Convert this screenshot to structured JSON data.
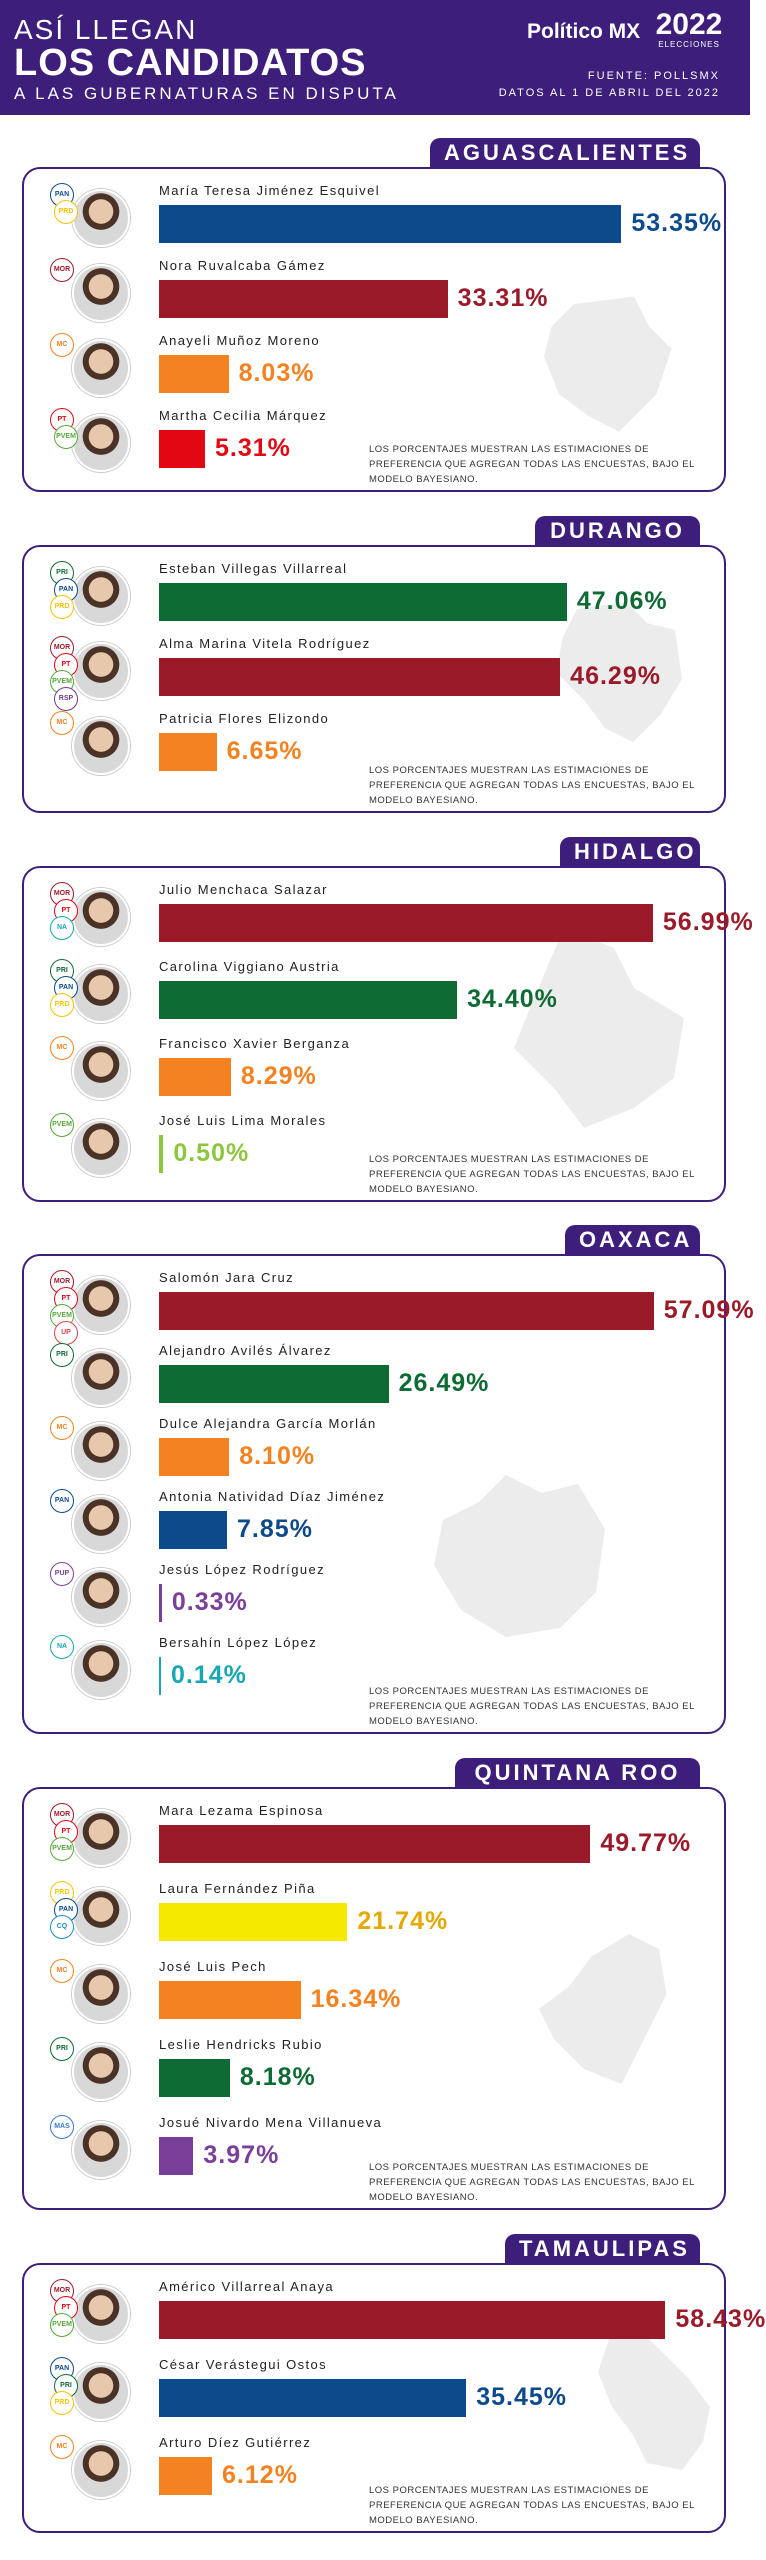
{
  "header": {
    "line1": "ASÍ LLEGAN",
    "line2": "LOS CANDIDATOS",
    "line3": "A LAS GUBERNATURAS EN DISPUTA",
    "logo": "Político MX",
    "year": "2022",
    "elecciones": "ELECCIONES",
    "source": "FUENTE: POLLSMX",
    "date": "DATOS AL 1 DE ABRIL DEL 2022"
  },
  "note": "LOS PORCENTAJES MUESTRAN LAS ESTIMACIONES DE PREFERENCIA QUE AGREGAN TODAS LAS ENCUESTAS, BAJO EL MODELO BAYESIANO.",
  "colors": {
    "morena": "#9b1a2a",
    "pan": "#0d4a8c",
    "pri": "#0e6b34",
    "mc": "#f58220",
    "pt": "#e30613",
    "pes": "#7a3f98",
    "pvem": "#8dc63f",
    "amarillo": "#f6e900",
    "fxm": "#18a7b5",
    "purple": "#3d1e7a"
  },
  "chart_data": [
    {
      "type": "bar",
      "title": "AGUASCALIENTES",
      "categories": [
        "María Teresa Jiménez Esquivel",
        "Nora Ruvalcaba Gámez",
        "Anayeli Muñoz Moreno",
        "Martha Cecilia Márquez"
      ],
      "values": [
        53.35,
        33.31,
        8.03,
        5.31
      ],
      "labels": [
        "53.35%",
        "33.31%",
        "8.03%",
        "5.31%"
      ],
      "bar_colors": [
        "#0d4a8c",
        "#9b1a2a",
        "#f58220",
        "#e30613"
      ],
      "value_colors": [
        "#0d4a8c",
        "#9b1a2a",
        "#f58220",
        "#e30613"
      ],
      "xlim": [
        0,
        60
      ]
    },
    {
      "type": "bar",
      "title": "DURANGO",
      "categories": [
        "Esteban Villegas Villarreal",
        "Alma Marina Vitela Rodríguez",
        "Patricia Flores Elizondo"
      ],
      "values": [
        47.06,
        46.29,
        6.65
      ],
      "labels": [
        "47.06%",
        "46.29%",
        "6.65%"
      ],
      "bar_colors": [
        "#0e6b34",
        "#9b1a2a",
        "#f58220"
      ],
      "value_colors": [
        "#0e6b34",
        "#9b1a2a",
        "#f58220"
      ],
      "xlim": [
        0,
        60
      ]
    },
    {
      "type": "bar",
      "title": "HIDALGO",
      "categories": [
        "Julio Menchaca Salazar",
        "Carolina Viggiano Austria",
        "Francisco Xavier Berganza",
        "José Luis Lima Morales"
      ],
      "values": [
        56.99,
        34.4,
        8.29,
        0.5
      ],
      "labels": [
        "56.99%",
        "34.40%",
        "8.29%",
        "0.50%"
      ],
      "bar_colors": [
        "#9b1a2a",
        "#0e6b34",
        "#f58220",
        "#8dc63f"
      ],
      "value_colors": [
        "#9b1a2a",
        "#0e6b34",
        "#f58220",
        "#8dc63f"
      ],
      "xlim": [
        0,
        60
      ]
    },
    {
      "type": "bar",
      "title": "OAXACA",
      "categories": [
        "Salomón Jara Cruz",
        "Alejandro Avilés Álvarez",
        "Dulce Alejandra García Morlán",
        "Antonia Natividad Díaz Jiménez",
        "Jesús López Rodríguez",
        "Bersahín López López"
      ],
      "values": [
        57.09,
        26.49,
        8.1,
        7.85,
        0.33,
        0.14
      ],
      "labels": [
        "57.09%",
        "26.49%",
        "8.10%",
        "7.85%",
        "0.33%",
        "0.14%"
      ],
      "bar_colors": [
        "#9b1a2a",
        "#0e6b34",
        "#f58220",
        "#0d4a8c",
        "#7a3f98",
        "#18a7b5"
      ],
      "value_colors": [
        "#9b1a2a",
        "#0e6b34",
        "#f58220",
        "#0d4a8c",
        "#7a3f98",
        "#18a7b5"
      ],
      "xlim": [
        0,
        60
      ]
    },
    {
      "type": "bar",
      "title": "QUINTANA ROO",
      "categories": [
        "Mara Lezama Espinosa",
        "Laura Fernández Piña",
        "José Luis Pech",
        "Leslie Hendricks Rubio",
        "Josué Nivardo Mena Villanueva"
      ],
      "values": [
        49.77,
        21.74,
        16.34,
        8.18,
        3.97
      ],
      "labels": [
        "49.77%",
        "21.74%",
        "16.34%",
        "8.18%",
        "3.97%"
      ],
      "bar_colors": [
        "#9b1a2a",
        "#f6e900",
        "#f58220",
        "#0e6b34",
        "#7a3f98"
      ],
      "value_colors": [
        "#9b1a2a",
        "#e5a800",
        "#f58220",
        "#0e6b34",
        "#7a3f98"
      ],
      "xlim": [
        0,
        60
      ]
    },
    {
      "type": "bar",
      "title": "TAMAULIPAS",
      "categories": [
        "Américo Villarreal Anaya",
        "César Verástegui Ostos",
        "Arturo Díez Gutiérrez"
      ],
      "values": [
        58.43,
        35.45,
        6.12
      ],
      "labels": [
        "58.43%",
        "35.45%",
        "6.12%"
      ],
      "bar_colors": [
        "#9b1a2a",
        "#0d4a8c",
        "#f58220"
      ],
      "value_colors": [
        "#9b1a2a",
        "#0d4a8c",
        "#f58220"
      ],
      "xlim": [
        0,
        60
      ]
    }
  ],
  "badges": [
    [
      [
        "PAN",
        "PRD"
      ],
      [
        "MORENA"
      ],
      [
        "MC"
      ],
      [
        "PT",
        "PVEM"
      ]
    ],
    [
      [
        "PRI",
        "PAN",
        "PRD"
      ],
      [
        "MORENA",
        "PT",
        "PVEM",
        "RSP"
      ],
      [
        "MC"
      ]
    ],
    [
      [
        "MORENA",
        "PT",
        "NA"
      ],
      [
        "PRI",
        "PAN",
        "PRD"
      ],
      [
        "MC"
      ],
      [
        "PVEM"
      ]
    ],
    [
      [
        "MORENA",
        "PT",
        "PVEM",
        "UP"
      ],
      [
        "PRI"
      ],
      [
        "MC"
      ],
      [
        "PAN"
      ],
      [
        "PUP"
      ],
      [
        "NA"
      ]
    ],
    [
      [
        "MORENA",
        "PT",
        "PVEM"
      ],
      [
        "PRD",
        "PAN",
        "CQ"
      ],
      [
        "MC"
      ],
      [
        "PRI"
      ],
      [
        "MÁS"
      ]
    ],
    [
      [
        "MORENA",
        "PT",
        "PVEM"
      ],
      [
        "PAN",
        "PRI",
        "PRD"
      ],
      [
        "MC"
      ]
    ]
  ]
}
